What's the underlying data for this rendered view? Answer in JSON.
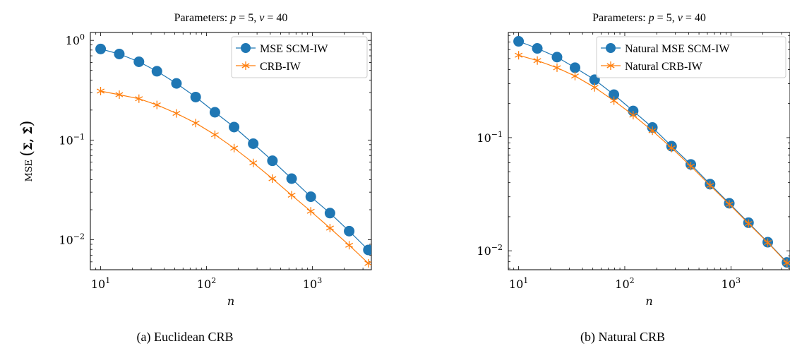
{
  "chart_data": [
    {
      "type": "line",
      "title": "Parameters: p = 5, ν = 40",
      "xlabel": "n",
      "ylabel": "MSE (Σ, Σ̂)",
      "caption": "(a) Euclidean CRB",
      "xscale": "log",
      "yscale": "log",
      "xlim": [
        8,
        3600
      ],
      "ylim": [
        0.005,
        1.2
      ],
      "xticks": [
        "10^1",
        "10^2",
        "10^3"
      ],
      "yticks": [
        "10^-2",
        "10^-1",
        "10^0"
      ],
      "grid": false,
      "legend": "top-right",
      "x": [
        10,
        15,
        23,
        34,
        52,
        79,
        120,
        182,
        276,
        419,
        636,
        965,
        1464,
        2223,
        3374
      ],
      "series": [
        {
          "name": "MSE SCM-IW",
          "color": "#1f77b4",
          "marker": "circle",
          "values": [
            0.82,
            0.73,
            0.61,
            0.49,
            0.37,
            0.27,
            0.19,
            0.135,
            0.092,
            0.062,
            0.041,
            0.027,
            0.0185,
            0.0122,
            0.0079
          ]
        },
        {
          "name": "CRB-IW",
          "color": "#ff7f0e",
          "marker": "star",
          "values": [
            0.31,
            0.285,
            0.26,
            0.225,
            0.185,
            0.148,
            0.113,
            0.083,
            0.059,
            0.041,
            0.028,
            0.0193,
            0.0131,
            0.0088,
            0.0058
          ]
        }
      ]
    },
    {
      "type": "line",
      "title": "Parameters: p = 5, ν = 40",
      "xlabel": "n",
      "ylabel": "",
      "caption": "(b) Natural CRB",
      "xscale": "log",
      "yscale": "log",
      "xlim": [
        8,
        3600
      ],
      "ylim": [
        0.0068,
        0.85
      ],
      "xticks": [
        "10^1",
        "10^2",
        "10^3"
      ],
      "yticks": [
        "10^-2",
        "10^-1"
      ],
      "grid": false,
      "legend": "top-right",
      "x": [
        10,
        15,
        23,
        34,
        52,
        79,
        120,
        182,
        276,
        419,
        636,
        965,
        1464,
        2223,
        3374
      ],
      "series": [
        {
          "name": "Natural MSE SCM-IW",
          "color": "#1f77b4",
          "marker": "circle",
          "values": [
            0.71,
            0.615,
            0.515,
            0.415,
            0.325,
            0.24,
            0.172,
            0.123,
            0.084,
            0.058,
            0.0388,
            0.0263,
            0.0177,
            0.0119,
            0.0079
          ]
        },
        {
          "name": "Natural CRB-IW",
          "color": "#ff7f0e",
          "marker": "star",
          "values": [
            0.535,
            0.48,
            0.415,
            0.35,
            0.278,
            0.212,
            0.158,
            0.115,
            0.081,
            0.056,
            0.0378,
            0.0258,
            0.0174,
            0.0118,
            0.0078
          ]
        }
      ]
    }
  ]
}
